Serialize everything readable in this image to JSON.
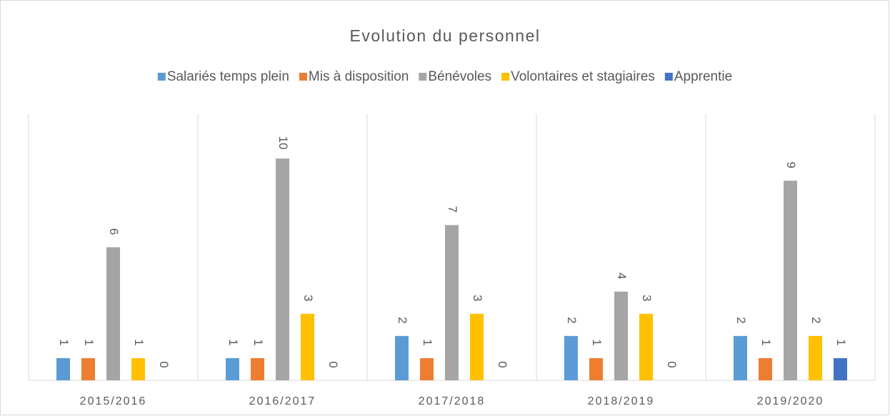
{
  "chart_data": {
    "type": "bar",
    "title": "Evolution du personnel",
    "categories": [
      "2015/2016",
      "2016/2017",
      "2017/2018",
      "2018/2019",
      "2019/2020"
    ],
    "series": [
      {
        "name": "Salariés temps plein",
        "color": "#5b9bd5",
        "values": [
          1,
          1,
          2,
          2,
          2
        ]
      },
      {
        "name": "Mis à disposition",
        "color": "#ed7d31",
        "values": [
          1,
          1,
          1,
          1,
          1
        ]
      },
      {
        "name": "Bénévoles",
        "color": "#a5a5a5",
        "values": [
          6,
          10,
          7,
          4,
          9
        ]
      },
      {
        "name": "Volontaires et stagiaires",
        "color": "#ffc000",
        "values": [
          1,
          3,
          3,
          3,
          2
        ]
      },
      {
        "name": "Apprentie",
        "color": "#4472c4",
        "values": [
          0,
          0,
          0,
          0,
          1
        ]
      }
    ],
    "ylim": [
      0,
      12
    ],
    "legend": "top"
  }
}
